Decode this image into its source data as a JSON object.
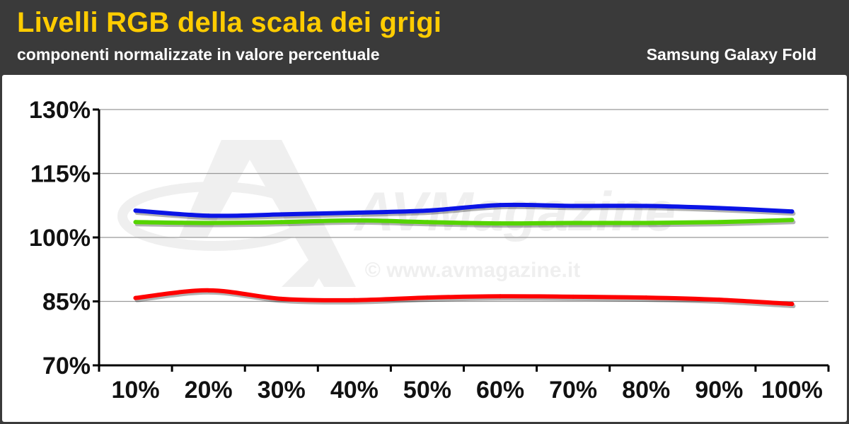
{
  "header": {
    "title": "Livelli RGB della scala dei grigi",
    "subtitle": "componenti normalizzate in valore percentuale",
    "device": "Samsung Galaxy Fold"
  },
  "watermark": {
    "brand": "AVMagazine",
    "url": "© www.avmagazine.it"
  },
  "colors": {
    "header_bg": "#3a3a3a",
    "title": "#ffcc00",
    "text_light": "#ffffff",
    "grid": "#999999",
    "axis": "#000000"
  },
  "chart_data": {
    "type": "line",
    "categories": [
      "10%",
      "20%",
      "30%",
      "40%",
      "50%",
      "60%",
      "70%",
      "80%",
      "90%",
      "100%"
    ],
    "ylim": [
      70,
      130
    ],
    "yticks": [
      70,
      85,
      100,
      115,
      130
    ],
    "ytick_labels": [
      "70%",
      "85%",
      "100%",
      "115%",
      "130%"
    ],
    "grid": true,
    "legend": "none",
    "series": [
      {
        "color": "#0a14e6",
        "values": [
          106.3,
          105.1,
          105.4,
          105.8,
          106.3,
          107.6,
          107.4,
          107.4,
          106.9,
          106.1
        ]
      },
      {
        "color": "#55d400",
        "values": [
          103.6,
          103.4,
          103.6,
          104.0,
          103.6,
          103.3,
          103.4,
          103.4,
          103.6,
          104.1
        ]
      },
      {
        "color": "#ff0000",
        "values": [
          85.8,
          87.6,
          85.6,
          85.3,
          85.9,
          86.2,
          86.1,
          85.9,
          85.4,
          84.4
        ]
      }
    ]
  }
}
